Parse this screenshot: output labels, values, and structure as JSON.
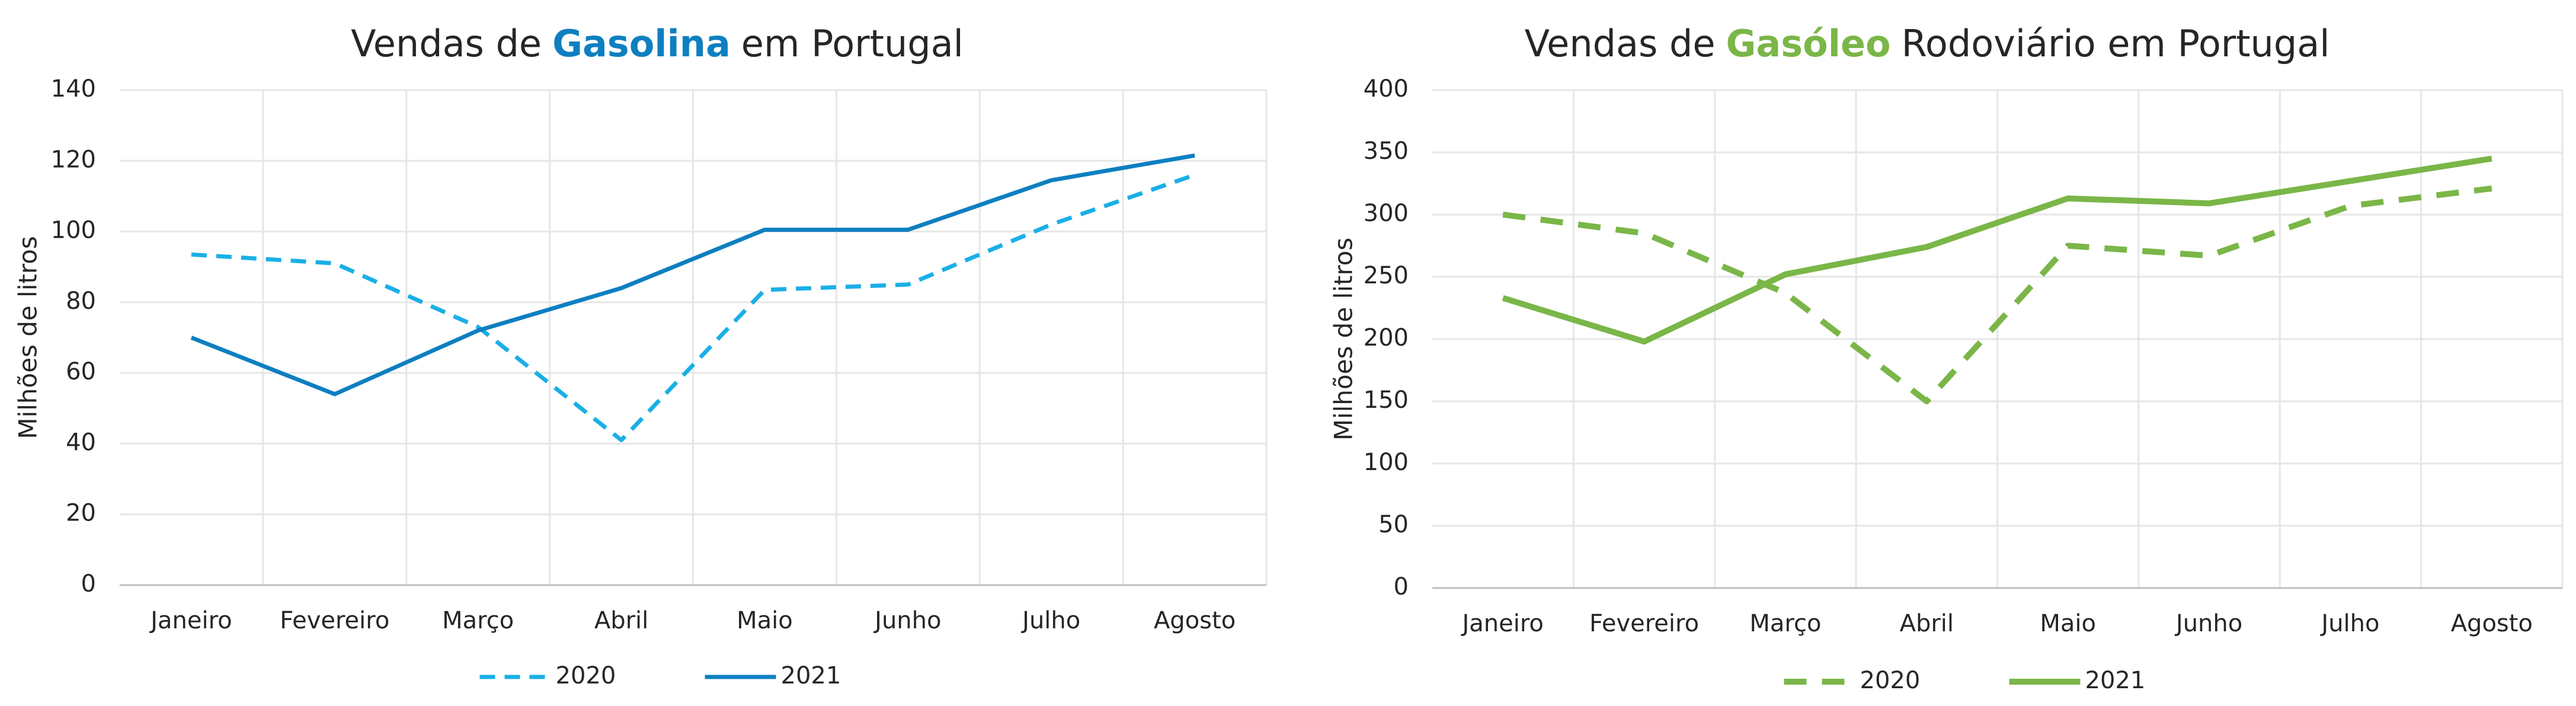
{
  "chart_data": [
    {
      "type": "line",
      "title": {
        "prefix": "Vendas de",
        "highlight": "Gasolina",
        "suffix": "em Portugal",
        "highlight_color": "#0e7fc0"
      },
      "y_label": "Milhões de litros",
      "categories": [
        "Janeiro",
        "Fevereiro",
        "Março",
        "Abril",
        "Maio",
        "Junho",
        "Julho",
        "Agosto"
      ],
      "series": [
        {
          "name": "2020",
          "color": "#1aafe6",
          "dashed": true,
          "values": [
            93.5,
            91,
            73,
            41,
            83.5,
            85,
            102,
            116
          ]
        },
        {
          "name": "2021",
          "color": "#0e7fc0",
          "dashed": false,
          "values": [
            70,
            54,
            72,
            84,
            100.5,
            100.5,
            114.5,
            121.5
          ]
        }
      ],
      "ylim": [
        0,
        140
      ],
      "yticks": [
        0,
        20,
        40,
        60,
        80,
        100,
        120,
        140
      ],
      "grid": true,
      "legend": "bottom"
    },
    {
      "type": "line",
      "title": {
        "prefix": "Vendas de",
        "highlight": "Gasóleo",
        "suffix": "Rodoviário em Portugal",
        "highlight_color": "#7ab648"
      },
      "y_label": "Milhões de litros",
      "categories": [
        "Janeiro",
        "Fevereiro",
        "Março",
        "Abril",
        "Maio",
        "Junho",
        "Julho",
        "Agosto"
      ],
      "series": [
        {
          "name": "2020",
          "color": "#7ab648",
          "dashed": true,
          "values": [
            300,
            285,
            237,
            150,
            275,
            267,
            307,
            321
          ]
        },
        {
          "name": "2021",
          "color": "#7ab648",
          "dashed": false,
          "values": [
            233,
            198,
            252,
            274,
            313,
            309,
            327,
            345
          ]
        }
      ],
      "ylim": [
        0,
        400
      ],
      "yticks": [
        0,
        50,
        100,
        150,
        200,
        250,
        300,
        350,
        400
      ],
      "grid": true,
      "legend": "bottom"
    }
  ]
}
